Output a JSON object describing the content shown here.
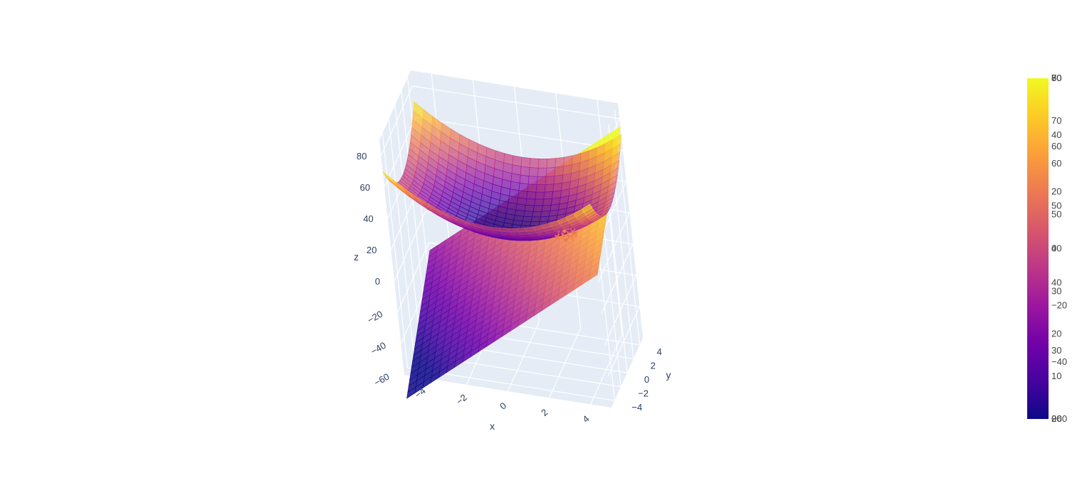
{
  "chart_data": {
    "type": "surface3d",
    "title": "",
    "axes": {
      "x": {
        "label": "x",
        "range": [
          -5,
          5
        ],
        "ticks": [
          "−4",
          "−2",
          "0",
          "2",
          "4"
        ]
      },
      "y": {
        "label": "y",
        "range": [
          -5,
          5
        ],
        "ticks": [
          "−4",
          "−2",
          "0",
          "2",
          "4"
        ]
      },
      "z": {
        "label": "z",
        "range": [
          -60,
          90
        ],
        "ticks": [
          "−60",
          "−40",
          "−20",
          "0",
          "20",
          "40",
          "60",
          "80"
        ]
      }
    },
    "series": [
      {
        "surface": "paraboloid",
        "formula": "z = x^2 + y^2 + 20",
        "z_range": [
          20,
          70
        ],
        "opacity": 0.7,
        "colorbar_ticks": [
          "20",
          "30",
          "40",
          "50",
          "60",
          "70"
        ]
      },
      {
        "surface": "plane",
        "formula": "z = 10x + 5y",
        "z_range": [
          -60,
          60
        ],
        "opacity": 0.85,
        "colorbar_ticks": [
          "−60",
          "−40",
          "−20",
          "0",
          "20",
          "40",
          "60"
        ]
      },
      {
        "surface": "marker-cluster",
        "z_range": [
          0,
          80
        ],
        "colorbar_ticks": [
          "0",
          "10",
          "20",
          "30",
          "40",
          "50",
          "60",
          "70",
          "80"
        ]
      }
    ],
    "colorscale": [
      "#0d0887",
      "#46039f",
      "#7201a8",
      "#9c179e",
      "#bd3786",
      "#d8576b",
      "#ed7953",
      "#fb9f3a",
      "#fdca26",
      "#f0f921"
    ],
    "legend": "none",
    "grid": true,
    "scene_background": "#e5ecf6"
  }
}
